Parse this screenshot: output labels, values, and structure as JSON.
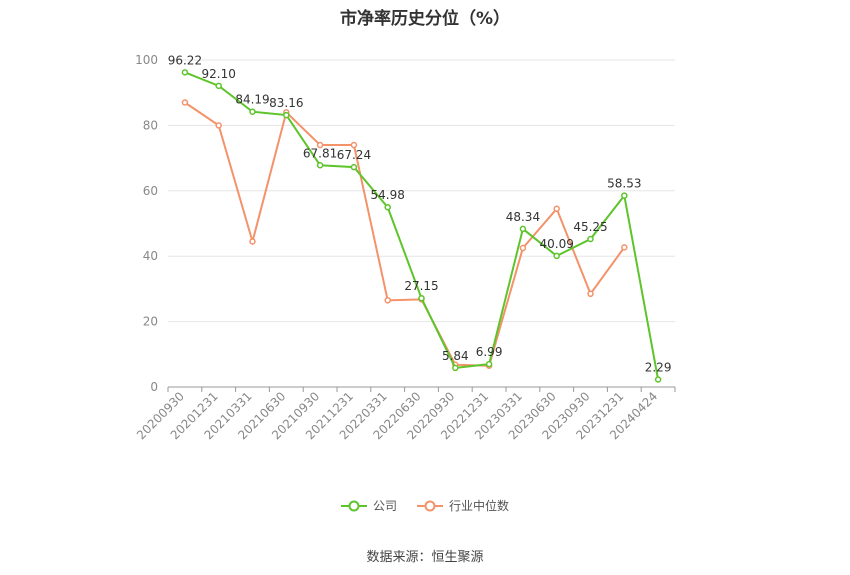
{
  "title": "市净率历史分位（%）",
  "source": "数据来源：恒生聚源",
  "colors": {
    "company": "#5ec42b",
    "industry": "#f4926a",
    "grid": "#e6e6e6",
    "axis": "#999999"
  },
  "chart_data": {
    "type": "line",
    "title": "市净率历史分位（%）",
    "xlabel": "",
    "ylabel": "",
    "ylim": [
      0,
      100
    ],
    "yticks": [
      0,
      20,
      40,
      60,
      80,
      100
    ],
    "grid": true,
    "legend_position": "bottom",
    "categories": [
      "20200930",
      "20201231",
      "20210331",
      "20210630",
      "20210930",
      "20211231",
      "20220331",
      "20220630",
      "20220930",
      "20221231",
      "20230331",
      "20230630",
      "20230930",
      "20231231",
      "20240424"
    ],
    "series": [
      {
        "name": "公司",
        "color": "#5ec42b",
        "show_labels": true,
        "values": [
          96.22,
          92.1,
          84.19,
          83.16,
          67.81,
          67.24,
          54.98,
          27.15,
          5.84,
          6.99,
          48.34,
          40.09,
          45.25,
          58.53,
          2.29
        ]
      },
      {
        "name": "行业中位数",
        "color": "#f4926a",
        "show_labels": false,
        "values": [
          87,
          80,
          44.5,
          84,
          74,
          74,
          26.5,
          26.8,
          6.8,
          6.5,
          42.5,
          54.5,
          28.5,
          42.7,
          null
        ]
      }
    ]
  }
}
